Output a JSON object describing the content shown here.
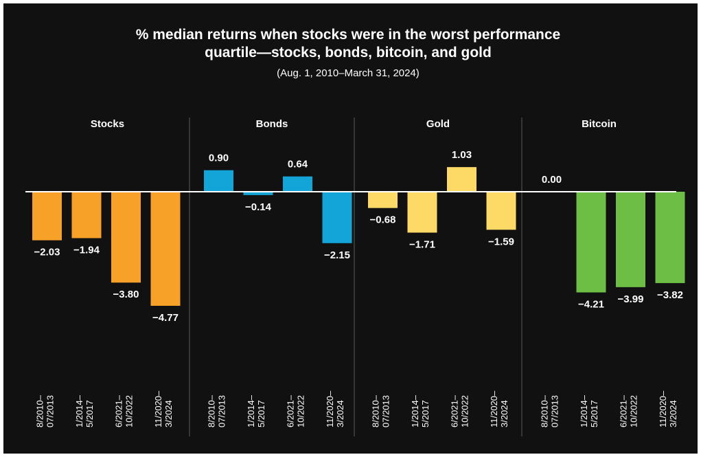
{
  "chart_data": {
    "type": "bar",
    "title": "% median returns when stocks were in the worst performance quartile—stocks, bonds, bitcoin, and gold",
    "title_lines": [
      "% median returns when stocks were in the worst performance",
      "quartile—stocks, bonds, bitcoin, and gold"
    ],
    "subtitle": "(Aug. 1, 2010–March 31, 2024)",
    "categories": [
      "8/2010–07/2013",
      "1/2014–5/2017",
      "6/2021–10/2022",
      "11/2020–3/2024"
    ],
    "category_lines": [
      [
        "8/2010–",
        "07/2013"
      ],
      [
        "1/2014–",
        "5/2017"
      ],
      [
        "6/2021–",
        "10/2022"
      ],
      [
        "11/2020–",
        "3/2024"
      ]
    ],
    "ylim": [
      -5,
      1.2
    ],
    "grid": false,
    "value_labels": {
      "Stocks": [
        "−2.03",
        "−1.94",
        "−3.80",
        "−4.77"
      ],
      "Bonds": [
        "0.90",
        "−0.14",
        "0.64",
        "−2.15"
      ],
      "Gold": [
        "−0.68",
        "−1.71",
        "1.03",
        "−1.59"
      ],
      "Bitcoin": [
        "0.00",
        "−4.21",
        "−3.99",
        "−3.82"
      ]
    },
    "series": [
      {
        "name": "Stocks",
        "color": "#F7A128",
        "values": [
          -2.03,
          -1.94,
          -3.8,
          -4.77
        ]
      },
      {
        "name": "Bonds",
        "color": "#14A5D8",
        "values": [
          0.9,
          -0.14,
          0.64,
          -2.15
        ]
      },
      {
        "name": "Gold",
        "color": "#FDD966",
        "values": [
          -0.68,
          -1.71,
          1.03,
          -1.59
        ]
      },
      {
        "name": "Bitcoin",
        "color": "#6CBE45",
        "values": [
          0.0,
          -4.21,
          -3.99,
          -3.82
        ]
      }
    ]
  }
}
